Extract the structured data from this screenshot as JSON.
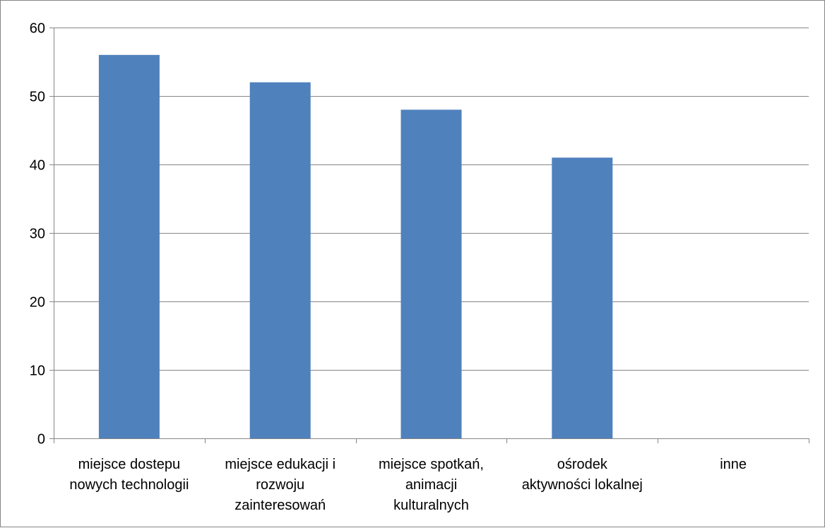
{
  "chart_data": {
    "type": "bar",
    "title": "",
    "xlabel": "",
    "ylabel": "",
    "categories": [
      [
        "miejsce dostepu",
        "nowych technologii"
      ],
      [
        "miejsce edukacji i",
        "rozwoju",
        "zainteresowań"
      ],
      [
        "miejsce spotkań,",
        "animacji",
        "kulturalnych"
      ],
      [
        "ośrodek",
        "aktywności lokalnej"
      ],
      [
        "inne"
      ]
    ],
    "values": [
      56,
      52,
      48,
      41,
      0
    ],
    "ylim": [
      0,
      60
    ],
    "yticks": [
      0,
      10,
      20,
      30,
      40,
      50,
      60
    ],
    "grid": true,
    "legend": "none",
    "bar_color": "#4F81BD",
    "grid_color": "#868686"
  }
}
